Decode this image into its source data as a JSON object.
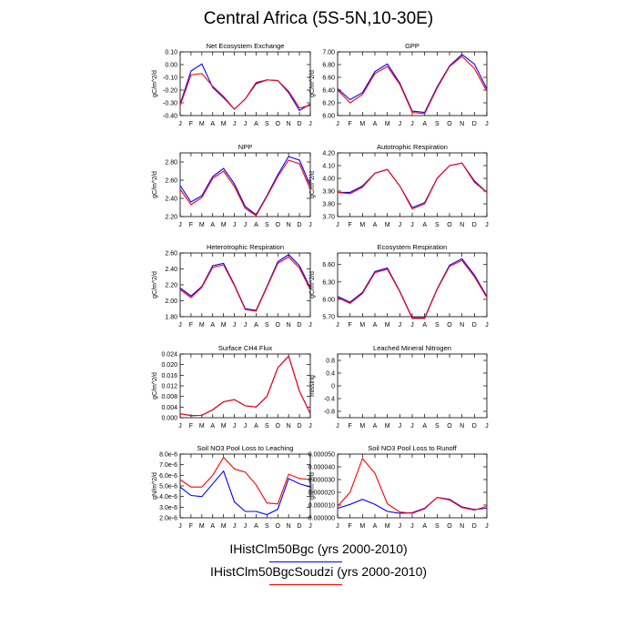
{
  "title": "Central Africa (5S-5N,10-30E)",
  "month_labels": [
    "J",
    "F",
    "M",
    "A",
    "M",
    "J",
    "J",
    "A",
    "S",
    "O",
    "N",
    "D",
    "J"
  ],
  "legend": [
    {
      "label": "IHistClm50Bgc (yrs 2000-2010)",
      "color": "#0000ff"
    },
    {
      "label": "IHistClm50BgcSoudzi (yrs 2000-2010)",
      "color": "#ff0000"
    }
  ],
  "chart_data": [
    {
      "type": "line",
      "title": "Net Ecosystem Exchange",
      "ylabel": "gC/m^2/d",
      "ylim": [
        -0.4,
        0.1
      ],
      "yticks": [
        -0.4,
        -0.3,
        -0.2,
        -0.1,
        0.0,
        0.1
      ],
      "yticklabels": [
        "-0.40",
        "-0.30",
        "-0.20",
        "-0.10",
        "0.00",
        "0.10"
      ],
      "series": [
        {
          "color": "#0000ff",
          "values": [
            -0.31,
            -0.05,
            0.005,
            -0.18,
            -0.26,
            -0.35,
            -0.27,
            -0.15,
            -0.12,
            -0.125,
            -0.22,
            -0.36,
            -0.31
          ]
        },
        {
          "color": "#ff0000",
          "values": [
            -0.32,
            -0.08,
            -0.07,
            -0.17,
            -0.25,
            -0.35,
            -0.27,
            -0.14,
            -0.12,
            -0.125,
            -0.21,
            -0.34,
            -0.32
          ]
        }
      ]
    },
    {
      "type": "line",
      "title": "GPP",
      "ylabel": "gC/m^2/d",
      "ylim": [
        6.0,
        7.0
      ],
      "yticks": [
        6.0,
        6.2,
        6.4,
        6.6,
        6.8,
        7.0
      ],
      "yticklabels": [
        "6.00",
        "6.20",
        "6.40",
        "6.60",
        "6.80",
        "7.00"
      ],
      "series": [
        {
          "color": "#0000ff",
          "values": [
            6.42,
            6.25,
            6.36,
            6.69,
            6.81,
            6.51,
            6.07,
            6.05,
            6.45,
            6.78,
            6.96,
            6.81,
            6.42
          ]
        },
        {
          "color": "#ff0000",
          "values": [
            6.4,
            6.2,
            6.33,
            6.66,
            6.77,
            6.49,
            6.05,
            6.03,
            6.43,
            6.77,
            6.93,
            6.74,
            6.38
          ]
        }
      ]
    },
    {
      "type": "line",
      "title": "NPP",
      "ylabel": "gC/m^2/d",
      "ylim": [
        2.2,
        2.9
      ],
      "yticks": [
        2.2,
        2.4,
        2.6,
        2.8
      ],
      "yticklabels": [
        "2.20",
        "2.40",
        "2.60",
        "2.80"
      ],
      "series": [
        {
          "color": "#0000ff",
          "values": [
            2.54,
            2.36,
            2.43,
            2.64,
            2.73,
            2.56,
            2.31,
            2.22,
            2.43,
            2.66,
            2.86,
            2.82,
            2.54
          ]
        },
        {
          "color": "#ff0000",
          "values": [
            2.5,
            2.33,
            2.41,
            2.62,
            2.7,
            2.53,
            2.29,
            2.21,
            2.42,
            2.64,
            2.82,
            2.78,
            2.5
          ]
        }
      ]
    },
    {
      "type": "line",
      "title": "Autotrophic Respiration",
      "ylabel": "gC/m^2/d",
      "ylim": [
        3.7,
        4.2
      ],
      "yticks": [
        3.7,
        3.8,
        3.9,
        4.0,
        4.1,
        4.2
      ],
      "yticklabels": [
        "3.70",
        "3.80",
        "3.90",
        "4.00",
        "4.10",
        "4.20"
      ],
      "series": [
        {
          "color": "#0000ff",
          "values": [
            3.89,
            3.89,
            3.94,
            4.04,
            4.07,
            3.94,
            3.77,
            3.81,
            4.0,
            4.1,
            4.12,
            3.98,
            3.89
          ]
        },
        {
          "color": "#ff0000",
          "values": [
            3.89,
            3.88,
            3.93,
            4.04,
            4.07,
            3.94,
            3.76,
            3.8,
            4.0,
            4.1,
            4.12,
            3.97,
            3.89
          ]
        }
      ]
    },
    {
      "type": "line",
      "title": "Heterotrophic Respiration",
      "ylabel": "gC/m^2/d",
      "ylim": [
        1.8,
        2.6
      ],
      "yticks": [
        1.8,
        2.0,
        2.2,
        2.4,
        2.6
      ],
      "yticklabels": [
        "1.80",
        "2.00",
        "2.20",
        "2.40",
        "2.60"
      ],
      "series": [
        {
          "color": "#0000ff",
          "values": [
            2.16,
            2.06,
            2.18,
            2.44,
            2.47,
            2.2,
            1.9,
            1.88,
            2.18,
            2.49,
            2.58,
            2.44,
            2.16
          ]
        },
        {
          "color": "#ff0000",
          "values": [
            2.14,
            2.04,
            2.17,
            2.42,
            2.45,
            2.19,
            1.89,
            1.87,
            2.17,
            2.47,
            2.55,
            2.41,
            2.14
          ]
        }
      ]
    },
    {
      "type": "line",
      "title": "Ecosystem Respiration",
      "ylabel": "gC/m^2/d",
      "ylim": [
        5.7,
        6.8
      ],
      "yticks": [
        5.7,
        6.0,
        6.3,
        6.6
      ],
      "yticklabels": [
        "5.70",
        "6.00",
        "6.30",
        "6.60"
      ],
      "series": [
        {
          "color": "#0000ff",
          "values": [
            6.05,
            5.95,
            6.12,
            6.48,
            6.54,
            6.14,
            5.68,
            5.68,
            6.18,
            6.59,
            6.7,
            6.42,
            6.05
          ]
        },
        {
          "color": "#ff0000",
          "values": [
            6.03,
            5.93,
            6.1,
            6.46,
            6.52,
            6.13,
            5.67,
            5.67,
            6.17,
            6.57,
            6.67,
            6.39,
            6.03
          ]
        }
      ]
    },
    {
      "type": "line",
      "title": "Surface CH4 Flux",
      "ylabel": "gC/m^2/d",
      "ylim": [
        0.0,
        0.024
      ],
      "yticks": [
        0.0,
        0.004,
        0.008,
        0.012,
        0.016,
        0.02,
        0.024
      ],
      "yticklabels": [
        "0.000",
        "0.004",
        "0.008",
        "0.012",
        "0.016",
        "0.020",
        "0.024"
      ],
      "series": [
        {
          "color": "#0000ff",
          "values": [
            0.0015,
            0.0008,
            0.0009,
            0.003,
            0.006,
            0.0068,
            0.0045,
            0.004,
            0.008,
            0.0188,
            0.0232,
            0.01,
            0.0015
          ]
        },
        {
          "color": "#ff0000",
          "values": [
            0.0015,
            0.0008,
            0.0009,
            0.003,
            0.006,
            0.0068,
            0.0045,
            0.004,
            0.008,
            0.0188,
            0.0232,
            0.01,
            0.0015
          ]
        }
      ]
    },
    {
      "type": "line",
      "title": "Leached Mineral Nitrogen",
      "ylabel": "missing",
      "ylim": [
        -1.0,
        1.0
      ],
      "yticks": [
        -0.8,
        -0.4,
        0.0,
        0.4,
        0.8
      ],
      "yticklabels": [
        "-0.8",
        "-0.4",
        "0",
        "0.4",
        "0.8"
      ],
      "series": []
    },
    {
      "type": "line",
      "title": "Soil NO3 Pool Loss to Leaching",
      "ylabel": "gN/m^2/d",
      "ylim": [
        2e-06,
        8e-06
      ],
      "yticks": [
        2e-06,
        3e-06,
        4e-06,
        5e-06,
        6e-06,
        7e-06,
        8e-06
      ],
      "yticklabels": [
        "2.0e-6",
        "3.0e-6",
        "4.0e-6",
        "5.0e-6",
        "6.0e-6",
        "7.0e-6",
        "8.0e-6"
      ],
      "series": [
        {
          "color": "#0000ff",
          "values": [
            4.9e-06,
            4.1e-06,
            4e-06,
            5.2e-06,
            6.4e-06,
            3.5e-06,
            2.6e-06,
            2.6e-06,
            2.3e-06,
            2.8e-06,
            5.7e-06,
            5.2e-06,
            4.9e-06
          ]
        },
        {
          "color": "#ff0000",
          "values": [
            5.6e-06,
            4.9e-06,
            4.9e-06,
            6e-06,
            7.7e-06,
            6.6e-06,
            6.3e-06,
            5.1e-06,
            3.4e-06,
            3.3e-06,
            6.1e-06,
            5.7e-06,
            5.6e-06
          ]
        }
      ]
    },
    {
      "type": "line",
      "title": "Soil NO3 Pool Loss to Runoff",
      "ylabel": "gN/m^2/d",
      "ylim": [
        0.0,
        5e-05
      ],
      "yticks": [
        0.0,
        1e-05,
        2e-05,
        3e-05,
        4e-05,
        5e-05
      ],
      "yticklabels": [
        "0.000000",
        "0.000010",
        "0.000020",
        "0.000030",
        "0.000040",
        "0.000050"
      ],
      "series": [
        {
          "color": "#0000ff",
          "values": [
            7.5e-06,
            1.05e-05,
            1.45e-05,
            1.05e-05,
            5e-06,
            3.5e-06,
            4e-06,
            7.5e-06,
            1.6e-05,
            1.45e-05,
            8.5e-06,
            6.5e-06,
            7.5e-06
          ]
        },
        {
          "color": "#ff0000",
          "values": [
            9e-06,
            2e-05,
            4.65e-05,
            3.5e-05,
            1.1e-05,
            4.5e-06,
            3.5e-06,
            7e-06,
            1.6e-05,
            1.4e-05,
            8e-06,
            6e-06,
            9e-06
          ]
        }
      ]
    }
  ]
}
